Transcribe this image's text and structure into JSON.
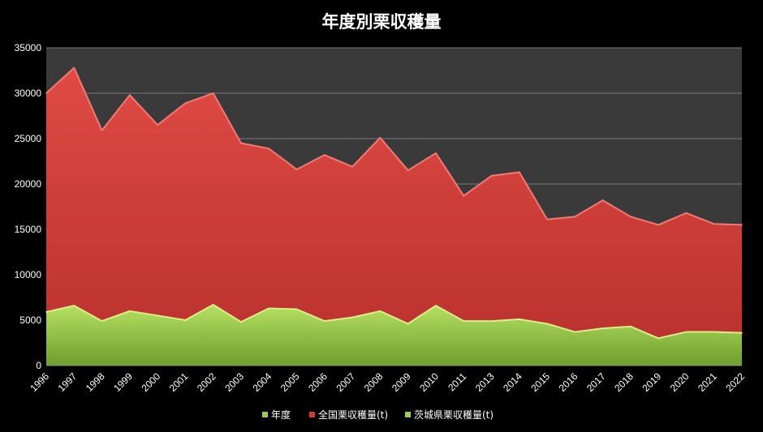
{
  "chart_data": {
    "type": "area",
    "title": "年度別栗収穫量",
    "categories": [
      "1996",
      "1997",
      "1998",
      "1999",
      "2000",
      "2001",
      "2002",
      "2003",
      "2004",
      "2005",
      "2006",
      "2007",
      "2008",
      "2009",
      "2010",
      "2011",
      "2013",
      "2014",
      "2015",
      "2016",
      "2017",
      "2018",
      "2019",
      "2020",
      "2021",
      "2022"
    ],
    "ylim": [
      0,
      35000
    ],
    "yticks": [
      0,
      5000,
      10000,
      15000,
      20000,
      25000,
      30000,
      35000
    ],
    "grid": true,
    "legend_position": "bottom",
    "legend": [
      "年度",
      "全国栗収穫量(t)",
      "茨城県栗収穫量(t)"
    ],
    "series": [
      {
        "name": "全国栗収穫量(t)",
        "color": "#d13b36",
        "values": [
          30000,
          32800,
          25900,
          29800,
          26500,
          28900,
          30000,
          24500,
          23900,
          21600,
          23200,
          21900,
          25100,
          21500,
          23400,
          18700,
          20900,
          21300,
          16100,
          16400,
          18200,
          16400,
          15500,
          16800,
          15600,
          15500
        ]
      },
      {
        "name": "茨城県栗収穫量(t)",
        "color": "#9acd4c",
        "values": [
          5900,
          6600,
          4900,
          6000,
          5500,
          5000,
          6700,
          4800,
          6300,
          6200,
          4900,
          5300,
          6000,
          4600,
          6600,
          4900,
          4900,
          5100,
          4600,
          3700,
          4100,
          4300,
          3000,
          3700,
          3700,
          3600
        ]
      }
    ]
  }
}
